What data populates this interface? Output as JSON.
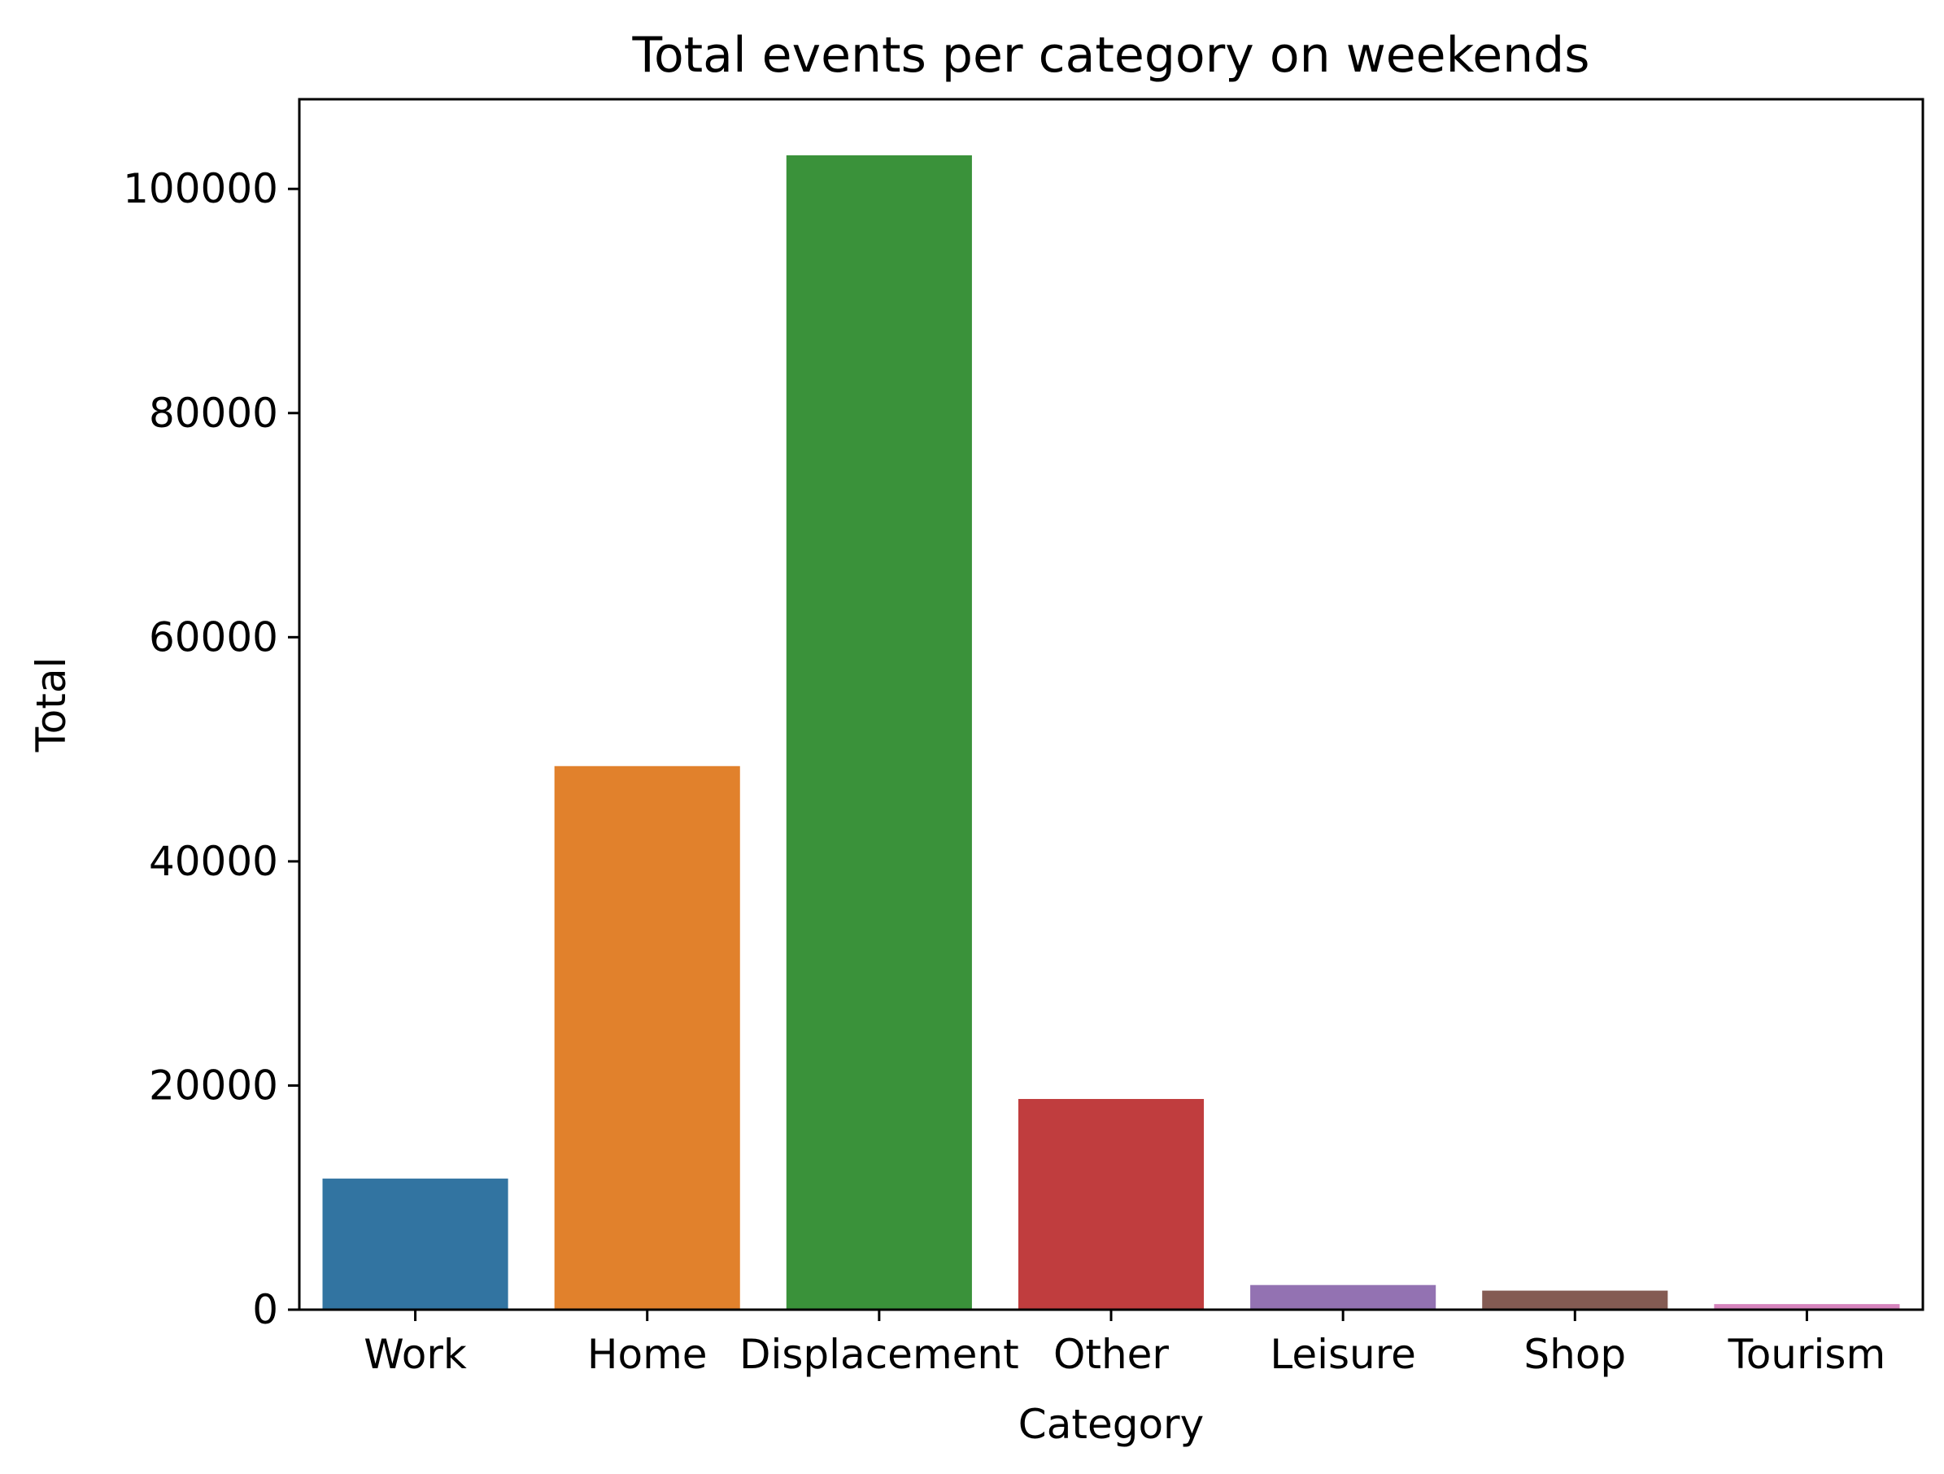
{
  "chart_data": {
    "type": "bar",
    "title": "Total events per category on weekends",
    "xlabel": "Category",
    "ylabel": "Total",
    "categories": [
      "Work",
      "Home",
      "Displacement",
      "Other",
      "Leisure",
      "Shop",
      "Tourism"
    ],
    "values": [
      11700,
      48500,
      103000,
      18800,
      2200,
      1700,
      500
    ],
    "colors": [
      "#3274a1",
      "#e1812c",
      "#3a923a",
      "#c03d3e",
      "#9372b2",
      "#845b53",
      "#d684bd"
    ],
    "ylim": [
      0,
      108000
    ],
    "yticks": [
      0,
      20000,
      40000,
      60000,
      80000,
      100000
    ],
    "grid": false,
    "legend": false
  }
}
